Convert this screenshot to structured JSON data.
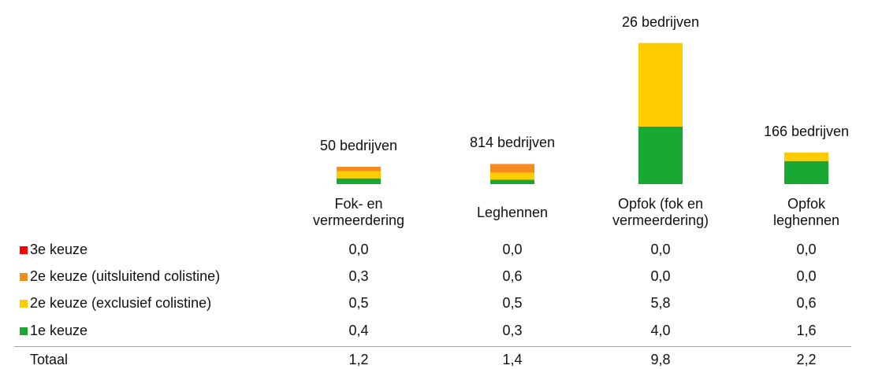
{
  "chart_data": {
    "type": "stacked-bar",
    "categories": [
      "Fok- en\nvermeerdering",
      "Leghennen",
      "Opfok (fok en\nvermeerdering)",
      "Opfok\nleghennen"
    ],
    "bar_labels": [
      "50 bedrijven",
      "814 bedrijven",
      "26 bedrijven",
      "166 bedrijven"
    ],
    "series": [
      {
        "name": "3e keuze",
        "color": "#ff0000",
        "values": [
          0.0,
          0.0,
          0.0,
          0.0
        ],
        "value_labels": [
          "0,0",
          "0,0",
          "0,0",
          "0,0"
        ]
      },
      {
        "name": "2e keuze (uitsluitend colistine)",
        "color": "#f58a1f",
        "values": [
          0.3,
          0.6,
          0.0,
          0.0
        ],
        "value_labels": [
          "0,3",
          "0,6",
          "0,0",
          "0,0"
        ]
      },
      {
        "name": "2e keuze (exclusief colistine)",
        "color": "#ffcc00",
        "values": [
          0.5,
          0.5,
          5.8,
          0.6
        ],
        "value_labels": [
          "0,5",
          "0,5",
          "5,8",
          "0,6"
        ]
      },
      {
        "name": "1e keuze",
        "color": "#19a832",
        "values": [
          0.4,
          0.3,
          4.0,
          1.6
        ],
        "value_labels": [
          "0,4",
          "0,3",
          "4,0",
          "1,6"
        ]
      }
    ],
    "total": {
      "name": "Totaal",
      "values": [
        1.2,
        1.4,
        9.8,
        2.2
      ],
      "value_labels": [
        "1,2",
        "1,4",
        "9,8",
        "2,2"
      ]
    }
  }
}
